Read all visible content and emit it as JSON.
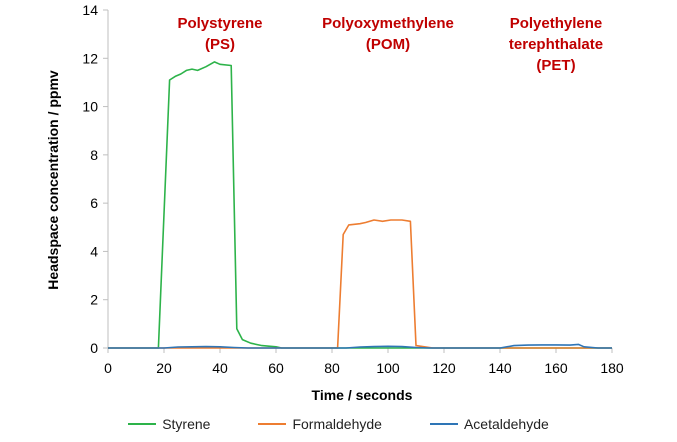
{
  "chart_data": {
    "type": "line",
    "title": "",
    "xlabel": "Time / seconds",
    "ylabel": "Headspace concentration / ppmv",
    "xlim": [
      0,
      180
    ],
    "ylim": [
      0,
      14
    ],
    "xticks": [
      0,
      20,
      40,
      60,
      80,
      100,
      120,
      140,
      160,
      180
    ],
    "yticks": [
      0,
      2,
      4,
      6,
      8,
      10,
      12,
      14
    ],
    "grid": false,
    "legend_position": "bottom",
    "annotations": [
      {
        "lines": [
          "Polystyrene",
          "(PS)"
        ],
        "color": "#c00000",
        "x": 40
      },
      {
        "lines": [
          "Polyoxymethylene",
          "(POM)"
        ],
        "color": "#c00000",
        "x": 100
      },
      {
        "lines": [
          "Polyethylene",
          "terephthalate",
          "(PET)"
        ],
        "color": "#c00000",
        "x": 160
      }
    ],
    "series": [
      {
        "name": "Styrene",
        "color": "#2db34a",
        "points": [
          [
            0,
            0
          ],
          [
            17,
            0
          ],
          [
            18,
            0
          ],
          [
            22,
            11.1
          ],
          [
            24,
            11.25
          ],
          [
            26,
            11.35
          ],
          [
            28,
            11.5
          ],
          [
            30,
            11.55
          ],
          [
            32,
            11.5
          ],
          [
            35,
            11.65
          ],
          [
            38,
            11.85
          ],
          [
            40,
            11.75
          ],
          [
            44,
            11.7
          ],
          [
            46,
            0.8
          ],
          [
            48,
            0.35
          ],
          [
            51,
            0.2
          ],
          [
            55,
            0.1
          ],
          [
            60,
            0.05
          ],
          [
            62,
            0
          ],
          [
            180,
            0
          ]
        ]
      },
      {
        "name": "Formaldehyde",
        "color": "#ed7d31",
        "points": [
          [
            0,
            0
          ],
          [
            82,
            0
          ],
          [
            84,
            4.7
          ],
          [
            86,
            5.1
          ],
          [
            90,
            5.15
          ],
          [
            92,
            5.2
          ],
          [
            95,
            5.3
          ],
          [
            98,
            5.25
          ],
          [
            101,
            5.3
          ],
          [
            105,
            5.3
          ],
          [
            108,
            5.25
          ],
          [
            110,
            0.1
          ],
          [
            113,
            0.05
          ],
          [
            116,
            0
          ],
          [
            180,
            0
          ]
        ]
      },
      {
        "name": "Acetaldehyde",
        "color": "#2e75b6",
        "points": [
          [
            0,
            0
          ],
          [
            20,
            0
          ],
          [
            25,
            0.04
          ],
          [
            30,
            0.05
          ],
          [
            35,
            0.06
          ],
          [
            40,
            0.05
          ],
          [
            45,
            0.02
          ],
          [
            50,
            0
          ],
          [
            85,
            0
          ],
          [
            90,
            0.04
          ],
          [
            95,
            0.06
          ],
          [
            100,
            0.07
          ],
          [
            105,
            0.06
          ],
          [
            110,
            0.02
          ],
          [
            115,
            0
          ],
          [
            140,
            0
          ],
          [
            145,
            0.1
          ],
          [
            150,
            0.12
          ],
          [
            155,
            0.13
          ],
          [
            160,
            0.13
          ],
          [
            165,
            0.12
          ],
          [
            168,
            0.15
          ],
          [
            170,
            0.05
          ],
          [
            175,
            0
          ],
          [
            180,
            0
          ]
        ]
      }
    ]
  }
}
